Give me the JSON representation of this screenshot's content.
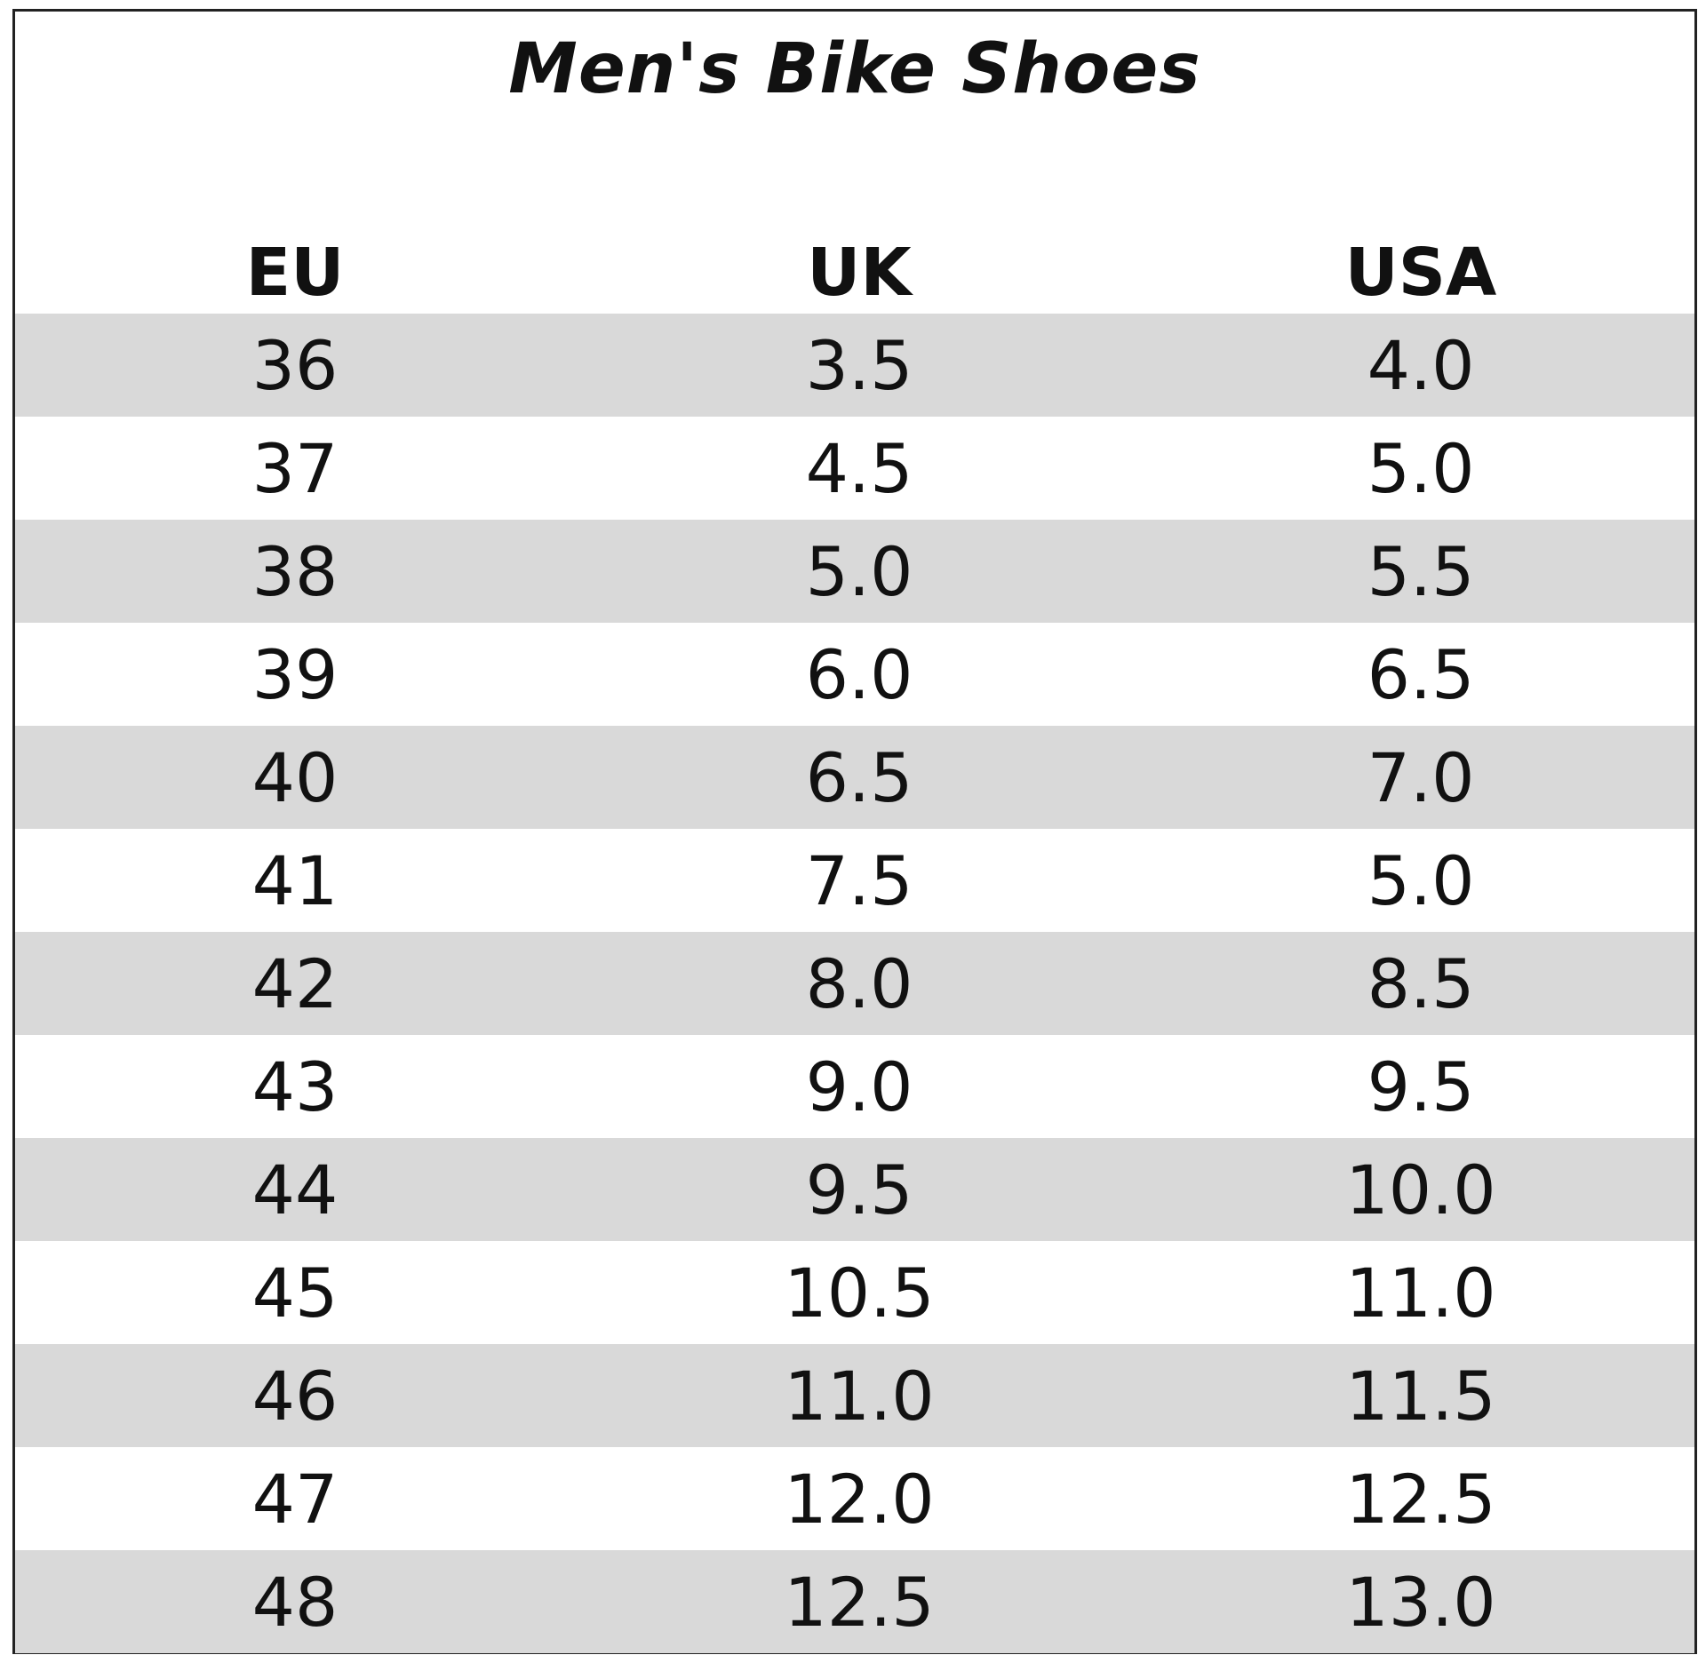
{
  "title": "Men's Bike Shoes",
  "headers": [
    "EU",
    "UK",
    "USA"
  ],
  "rows": [
    [
      "36",
      "3.5",
      "4.0"
    ],
    [
      "37",
      "4.5",
      "5.0"
    ],
    [
      "38",
      "5.0",
      "5.5"
    ],
    [
      "39",
      "6.0",
      "6.5"
    ],
    [
      "40",
      "6.5",
      "7.0"
    ],
    [
      "41",
      "7.5",
      "5.0"
    ],
    [
      "42",
      "8.0",
      "8.5"
    ],
    [
      "43",
      "9.0",
      "9.5"
    ],
    [
      "44",
      "9.5",
      "10.0"
    ],
    [
      "45",
      "10.5",
      "11.0"
    ],
    [
      "46",
      "11.0",
      "11.5"
    ],
    [
      "47",
      "12.0",
      "12.5"
    ],
    [
      "48",
      "12.5",
      "13.0"
    ]
  ],
  "colors": {
    "stripe": "#d9d9d9",
    "background": "#ffffff",
    "text": "#111111"
  }
}
